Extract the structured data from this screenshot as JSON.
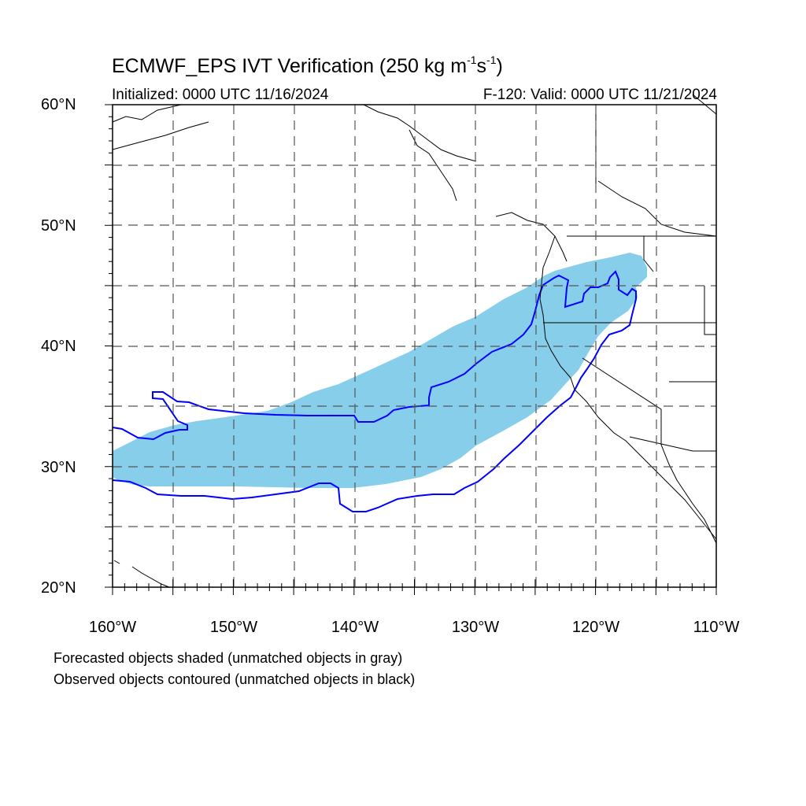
{
  "header": {
    "title_main": "ECMWF_EPS IVT Verification (250 kg m",
    "title_sup1": "-1",
    "title_mid": "s",
    "title_sup2": "-1",
    "title_end": ")",
    "initialized": "Initialized: 0000 UTC 11/16/2024",
    "valid": "F-120: Valid: 0000 UTC 11/21/2024"
  },
  "axes": {
    "lat_labels": [
      "60°N",
      "50°N",
      "40°N",
      "30°N",
      "20°N"
    ],
    "lon_labels": [
      "160°W",
      "150°W",
      "140°W",
      "130°W",
      "120°W",
      "110°W"
    ]
  },
  "legend_notes": [
    "Forecasted objects shaded (unmatched objects in gray)",
    "Observed objects contoured (unmatched objects in black)"
  ],
  "colors": {
    "forecast_fill": "#87ceeb",
    "observed_contour": "#0000ff",
    "coastline": "#000000",
    "grid": "#555555"
  }
}
